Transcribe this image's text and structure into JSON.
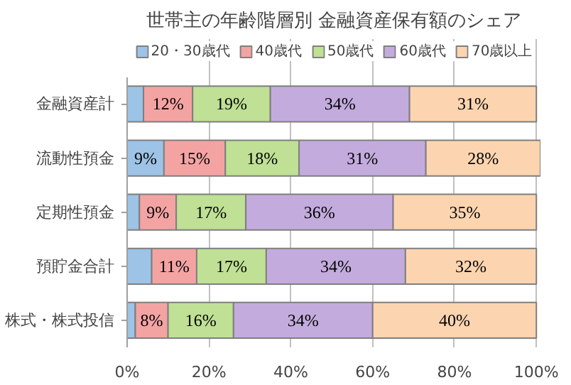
{
  "chart_data": {
    "type": "bar",
    "orientation": "horizontal",
    "stacked": true,
    "title": "世帯主の年齢階層別 金融資産保有額のシェア",
    "categories": [
      "金融資産計",
      "流動性預金",
      "定期性預金",
      "預貯金合計",
      "株式・株式投信"
    ],
    "series": [
      {
        "name": "20・30歳代",
        "color": "#9dc3e6",
        "values": [
          4,
          9,
          3,
          6,
          2
        ],
        "value_labels": [
          null,
          "9%",
          null,
          null,
          null
        ]
      },
      {
        "name": "40歳代",
        "color": "#f4a3a3",
        "values": [
          12,
          15,
          9,
          11,
          8
        ],
        "value_labels": [
          "12%",
          "15%",
          "9%",
          "11%",
          "8%"
        ]
      },
      {
        "name": "50歳代",
        "color": "#bfe095",
        "values": [
          19,
          18,
          17,
          17,
          16
        ],
        "value_labels": [
          "19%",
          "18%",
          "17%",
          "17%",
          "16%"
        ]
      },
      {
        "name": "60歳代",
        "color": "#c3acdd",
        "values": [
          34,
          31,
          36,
          34,
          34
        ],
        "value_labels": [
          "34%",
          "31%",
          "36%",
          "34%",
          "34%"
        ]
      },
      {
        "name": "70歳以上",
        "color": "#fcd5b0",
        "values": [
          31,
          28,
          35,
          32,
          40
        ],
        "value_labels": [
          "31%",
          "28%",
          "35%",
          "32%",
          "40%"
        ]
      }
    ],
    "xlim": [
      0,
      101
    ],
    "xticks": [
      {
        "value": 0,
        "label": "0%"
      },
      {
        "value": 20,
        "label": "20%"
      },
      {
        "value": 40,
        "label": "40%"
      },
      {
        "value": 60,
        "label": "60%"
      },
      {
        "value": 80,
        "label": "80%"
      },
      {
        "value": 100,
        "label": "100%"
      }
    ],
    "grid": "x",
    "legend": "top"
  }
}
